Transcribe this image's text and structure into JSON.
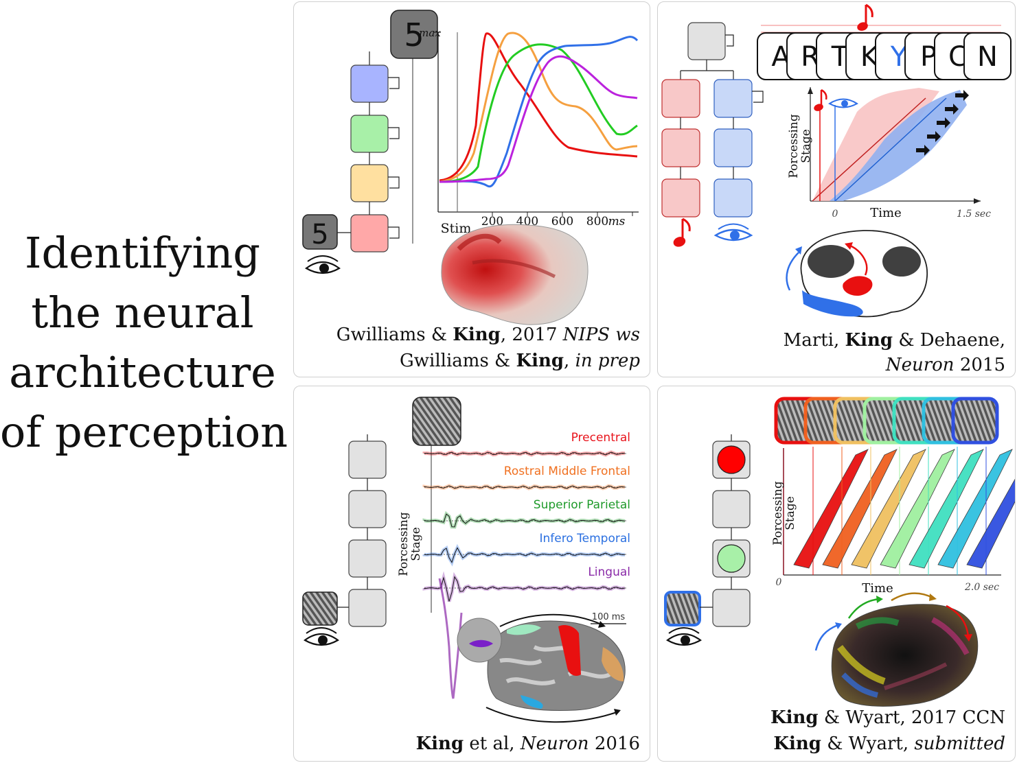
{
  "title": {
    "lines": [
      "Identifying",
      "the  neural",
      "architecture",
      "of perception"
    ]
  },
  "panel1": {
    "digit": "5",
    "max_label": "max",
    "axis": {
      "stim": "Stim",
      "t200": "200",
      "t400": "400",
      "t600": "600",
      "t800": "800",
      "unit": "ms"
    },
    "cite1": {
      "a": "Gwilliams & ",
      "b": "King",
      "c": ", 2017 ",
      "d": "NIPS ws"
    },
    "cite2": {
      "a": "Gwilliams & ",
      "b": "King",
      "c": ", ",
      "d": "in prep"
    }
  },
  "panel2": {
    "letters": [
      "A",
      "R",
      "T",
      "K",
      "Y",
      "P",
      "C",
      "N"
    ],
    "ylabel_1": "Porcessing",
    "ylabel_2": "Stage",
    "xlabel": "Time",
    "x0": "0",
    "xmax": "1.5 sec",
    "cite1": {
      "a": "Marti, ",
      "b": "King",
      "c": " & Dehaene,"
    },
    "cite2": {
      "a": "Neuron",
      "b": " 2015"
    }
  },
  "panel3": {
    "regions": [
      {
        "name": "Precentral",
        "color": "#e8141c"
      },
      {
        "name": "Rostral Middle Frontal",
        "color": "#f07020"
      },
      {
        "name": "Superior Parietal",
        "color": "#1e9a2a"
      },
      {
        "name": "Infero Temporal",
        "color": "#2a6fe0"
      },
      {
        "name": "Lingual",
        "color": "#8a2aa8"
      }
    ],
    "ylabel_1": "Porcessing",
    "ylabel_2": "Stage",
    "scale": "100 ms",
    "cite": {
      "a": "King",
      "b": " et al, ",
      "c": "Neuron",
      "d": " 2016"
    }
  },
  "panel4": {
    "ylabel_1": "Porcessing",
    "ylabel_2": "Stage",
    "xlabel": "Time",
    "x0": "0",
    "xmax": "2.0 sec",
    "cite1": {
      "a": "King",
      "b": " & Wyart, 2017 CCN"
    },
    "cite2": {
      "a": "King",
      "b": " & Wyart, ",
      "c": "submitted"
    }
  },
  "colors": {
    "red": "#e81010",
    "orange": "#f5a040",
    "green": "#22cc22",
    "blue": "#3070e8",
    "purple": "#bb22dd"
  }
}
